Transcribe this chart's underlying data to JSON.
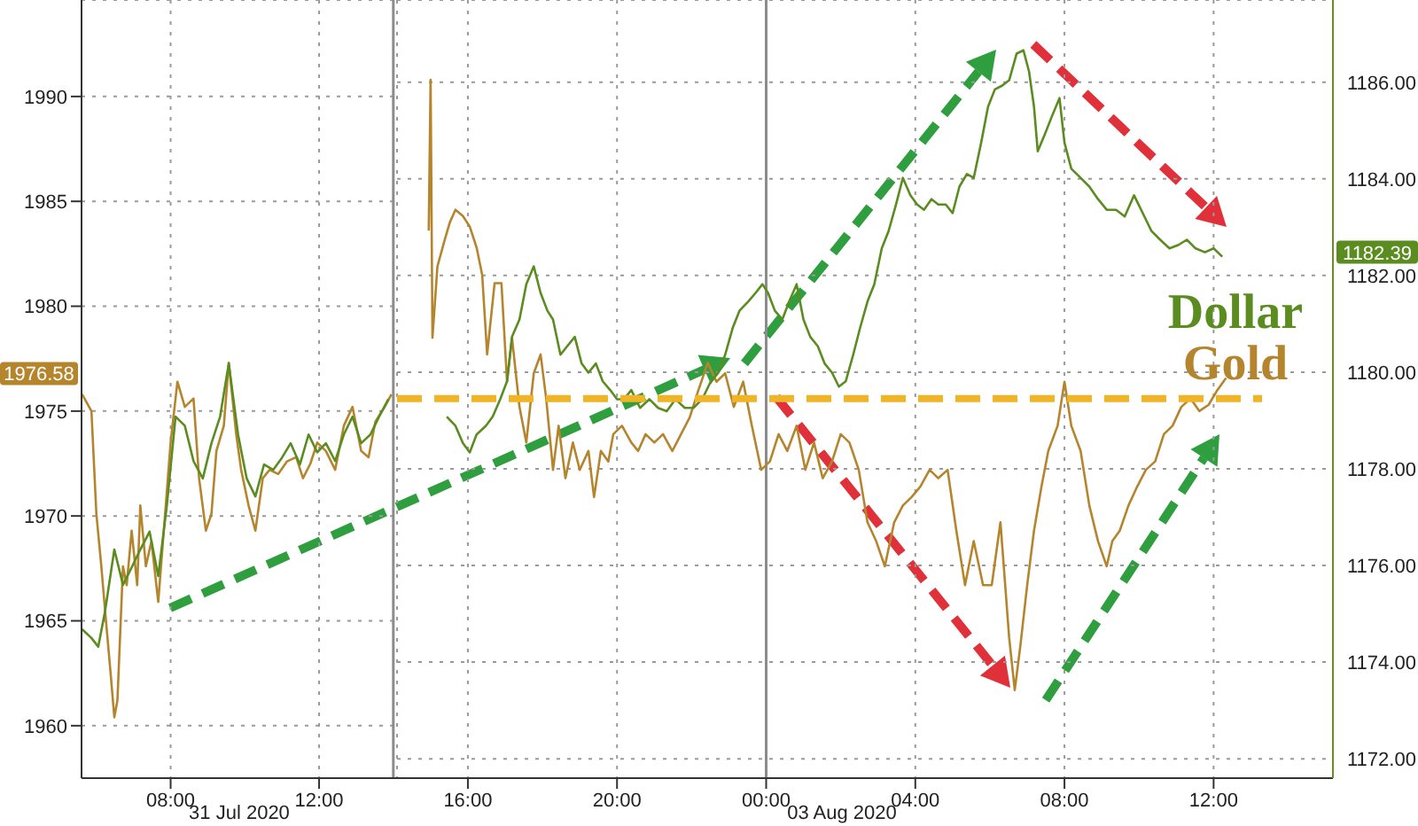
{
  "chart_data": [
    {
      "type": "line",
      "xlim": [
        "2020-07-31T05:36",
        "2020-07-31T14:06"
      ],
      "xticks": [
        {
          "value": "2020-07-31T08:00",
          "label": "08:00"
        },
        {
          "value": "2020-07-31T12:00",
          "label": "12:00"
        }
      ],
      "ylim": [
        1957.5,
        1994.6
      ],
      "yticks": [
        1960,
        1965,
        1970,
        1975,
        1980,
        1985,
        1990
      ],
      "y2lim": [
        1171.6,
        1187.7
      ],
      "grid": true,
      "annotations": [
        "31 Jul 2020"
      ],
      "ref_lines": [
        {
          "axis": "x",
          "value": "2020-07-31T14:00",
          "color": "#8c8c8c"
        }
      ],
      "series": [
        {
          "color": "#b5852e",
          "x": [
            "2020-07-31T05:37",
            "2020-07-31T05:52",
            "2020-07-31T06:00",
            "2020-07-31T06:08",
            "2020-07-31T06:14",
            "2020-07-31T06:23",
            "2020-07-31T06:29",
            "2020-07-31T06:34",
            "2020-07-31T06:43",
            "2020-07-31T06:49",
            "2020-07-31T06:57",
            "2020-07-31T07:06",
            "2020-07-31T07:11",
            "2020-07-31T07:20",
            "2020-07-31T07:29",
            "2020-07-31T07:40",
            "2020-07-31T07:49",
            "2020-07-31T08:00",
            "2020-07-31T08:11",
            "2020-07-31T08:23",
            "2020-07-31T08:37",
            "2020-07-31T08:46",
            "2020-07-31T08:57",
            "2020-07-31T09:06",
            "2020-07-31T09:14",
            "2020-07-31T09:26",
            "2020-07-31T09:34",
            "2020-07-31T09:46",
            "2020-07-31T09:54",
            "2020-07-31T10:06",
            "2020-07-31T10:17",
            "2020-07-31T10:29",
            "2020-07-31T10:40",
            "2020-07-31T10:54",
            "2020-07-31T11:08",
            "2020-07-31T11:23",
            "2020-07-31T11:34",
            "2020-07-31T11:46",
            "2020-07-31T11:57",
            "2020-07-31T12:11",
            "2020-07-31T12:26",
            "2020-07-31T12:40",
            "2020-07-31T12:54",
            "2020-07-31T13:08",
            "2020-07-31T13:20",
            "2020-07-31T13:31",
            "2020-07-31T13:46",
            "2020-07-31T13:57"
          ],
          "values": [
            1975.8,
            1975.0,
            1970.1,
            1967.6,
            1965.5,
            1962.5,
            1960.4,
            1961.2,
            1967.6,
            1966.7,
            1969.3,
            1966.7,
            1970.5,
            1967.6,
            1968.8,
            1965.9,
            1969.3,
            1973.5,
            1976.4,
            1975.2,
            1975.6,
            1971.8,
            1969.3,
            1970.1,
            1973.1,
            1974.3,
            1977.3,
            1973.9,
            1972.2,
            1970.5,
            1969.3,
            1971.8,
            1972.2,
            1972.0,
            1972.6,
            1972.8,
            1971.8,
            1972.5,
            1973.5,
            1973.1,
            1972.2,
            1974.3,
            1975.2,
            1973.1,
            1972.8,
            1974.5,
            1975.2,
            1975.8
          ]
        },
        {
          "color": "#5b8c1f",
          "axis": "y2",
          "x": [
            "2020-07-31T05:37",
            "2020-07-31T05:52",
            "2020-07-31T06:03",
            "2020-07-31T06:14",
            "2020-07-31T06:29",
            "2020-07-31T06:43",
            "2020-07-31T06:57",
            "2020-07-31T07:11",
            "2020-07-31T07:26",
            "2020-07-31T07:40",
            "2020-07-31T07:54",
            "2020-07-31T08:08",
            "2020-07-31T08:23",
            "2020-07-31T08:37",
            "2020-07-31T08:52",
            "2020-07-31T09:06",
            "2020-07-31T09:20",
            "2020-07-31T09:34",
            "2020-07-31T09:49",
            "2020-07-31T10:03",
            "2020-07-31T10:17",
            "2020-07-31T10:31",
            "2020-07-31T10:46",
            "2020-07-31T11:00",
            "2020-07-31T11:14",
            "2020-07-31T11:29",
            "2020-07-31T11:43",
            "2020-07-31T11:57",
            "2020-07-31T12:11",
            "2020-07-31T12:26",
            "2020-07-31T12:40",
            "2020-07-31T12:54",
            "2020-07-31T13:08",
            "2020-07-31T13:23",
            "2020-07-31T13:37",
            "2020-07-31T13:52"
          ],
          "values": [
            1174.68,
            1174.5,
            1174.32,
            1175.05,
            1176.33,
            1175.6,
            1175.96,
            1176.33,
            1176.7,
            1175.78,
            1177.25,
            1179.08,
            1178.89,
            1178.16,
            1177.8,
            1178.53,
            1179.08,
            1180.18,
            1178.71,
            1177.8,
            1177.43,
            1178.09,
            1177.98,
            1178.23,
            1178.53,
            1178.09,
            1178.71,
            1178.34,
            1178.53,
            1178.16,
            1178.71,
            1179.08,
            1178.53,
            1178.71,
            1179.08,
            1179.44
          ]
        }
      ]
    },
    {
      "type": "line",
      "xlim": [
        "2020-08-02T14:06",
        "2020-08-03T15:12"
      ],
      "xticks": [
        {
          "value": "2020-08-02T16:00",
          "label": "16:00"
        },
        {
          "value": "2020-08-02T20:00",
          "label": "20:00"
        },
        {
          "value": "2020-08-03T00:00",
          "label": "00:00"
        },
        {
          "value": "2020-08-03T04:00",
          "label": "04:00"
        },
        {
          "value": "2020-08-03T08:00",
          "label": "08:00"
        },
        {
          "value": "2020-08-03T12:00",
          "label": "12:00"
        }
      ],
      "ylim": [
        1957.5,
        1994.6
      ],
      "y2lim": [
        1171.6,
        1187.7
      ],
      "y2ticks": [
        {
          "value": 1172,
          "label": "1172.00"
        },
        {
          "value": 1174,
          "label": "1174.00"
        },
        {
          "value": 1176,
          "label": "1176.00"
        },
        {
          "value": 1178,
          "label": "1178.00"
        },
        {
          "value": 1180,
          "label": "1180.00"
        },
        {
          "value": 1182,
          "label": "1182.00"
        },
        {
          "value": 1184,
          "label": "1184.00"
        },
        {
          "value": 1186,
          "label": "1186.00"
        }
      ],
      "grid": true,
      "legend": "right",
      "annotations": [
        "03 Aug 2020",
        "1976.58",
        "1182.39"
      ],
      "ref_lines": [
        {
          "axis": "x",
          "value": "2020-08-03T00:00",
          "color": "#8c8c8c"
        }
      ],
      "series": [
        {
          "name": "Gold",
          "color": "#b5852e",
          "x": [
            "2020-08-02T14:57",
            "2020-08-02T15:00",
            "2020-08-02T15:03",
            "2020-08-02T15:11",
            "2020-08-02T15:23",
            "2020-08-02T15:31",
            "2020-08-02T15:40",
            "2020-08-02T15:52",
            "2020-08-02T16:03",
            "2020-08-02T16:14",
            "2020-08-02T16:23",
            "2020-08-02T16:31",
            "2020-08-02T16:43",
            "2020-08-02T16:54",
            "2020-08-02T17:03",
            "2020-08-02T17:11",
            "2020-08-02T17:23",
            "2020-08-02T17:34",
            "2020-08-02T17:46",
            "2020-08-02T17:57",
            "2020-08-02T18:06",
            "2020-08-02T18:17",
            "2020-08-02T18:26",
            "2020-08-02T18:37",
            "2020-08-02T18:49",
            "2020-08-02T19:00",
            "2020-08-02T19:14",
            "2020-08-02T19:23",
            "2020-08-02T19:34",
            "2020-08-02T19:46",
            "2020-08-02T19:54",
            "2020-08-02T20:08",
            "2020-08-02T20:23",
            "2020-08-02T20:34",
            "2020-08-02T20:46",
            "2020-08-02T21:00",
            "2020-08-02T21:14",
            "2020-08-02T21:29",
            "2020-08-02T21:43",
            "2020-08-02T21:57",
            "2020-08-02T22:11",
            "2020-08-02T22:26",
            "2020-08-02T22:40",
            "2020-08-02T22:54",
            "2020-08-02T23:08",
            "2020-08-02T23:23",
            "2020-08-02T23:37",
            "2020-08-02T23:52",
            "2020-08-03T00:06",
            "2020-08-03T00:20",
            "2020-08-03T00:34",
            "2020-08-03T00:49",
            "2020-08-03T01:03",
            "2020-08-03T01:17",
            "2020-08-03T01:31",
            "2020-08-03T01:46",
            "2020-08-03T02:00",
            "2020-08-03T02:14",
            "2020-08-03T02:29",
            "2020-08-03T02:43",
            "2020-08-03T02:57",
            "2020-08-03T03:11",
            "2020-08-03T03:26",
            "2020-08-03T03:40",
            "2020-08-03T03:54",
            "2020-08-03T04:08",
            "2020-08-03T04:23",
            "2020-08-03T04:37",
            "2020-08-03T04:52",
            "2020-08-03T05:06",
            "2020-08-03T05:20",
            "2020-08-03T05:34",
            "2020-08-03T05:49",
            "2020-08-03T06:03",
            "2020-08-03T06:17",
            "2020-08-03T06:31",
            "2020-08-03T06:40",
            "2020-08-03T06:49",
            "2020-08-03T07:00",
            "2020-08-03T07:11",
            "2020-08-03T07:23",
            "2020-08-03T07:34",
            "2020-08-03T07:49",
            "2020-08-03T08:00",
            "2020-08-03T08:11",
            "2020-08-03T08:26",
            "2020-08-03T08:40",
            "2020-08-03T08:54",
            "2020-08-03T09:08",
            "2020-08-03T09:17",
            "2020-08-03T09:29",
            "2020-08-03T09:43",
            "2020-08-03T09:57",
            "2020-08-03T10:11",
            "2020-08-03T10:26",
            "2020-08-03T10:40",
            "2020-08-03T10:54",
            "2020-08-03T11:08",
            "2020-08-03T11:23",
            "2020-08-03T11:37",
            "2020-08-03T11:52",
            "2020-08-03T12:06",
            "2020-08-03T12:20"
          ],
          "values": [
            1983.6,
            1990.8,
            1978.5,
            1981.9,
            1983.2,
            1984.0,
            1984.6,
            1984.3,
            1983.8,
            1982.8,
            1981.5,
            1977.7,
            1981.1,
            1981.1,
            1976.4,
            1978.5,
            1975.2,
            1973.5,
            1976.8,
            1977.7,
            1975.6,
            1972.2,
            1974.3,
            1971.8,
            1973.5,
            1972.2,
            1973.1,
            1970.9,
            1973.1,
            1972.6,
            1973.9,
            1974.3,
            1973.5,
            1973.1,
            1973.9,
            1973.5,
            1973.9,
            1973.1,
            1973.9,
            1974.7,
            1976.0,
            1977.3,
            1976.4,
            1976.8,
            1975.2,
            1976.4,
            1974.3,
            1972.2,
            1972.6,
            1973.9,
            1973.1,
            1974.3,
            1972.2,
            1973.5,
            1971.8,
            1972.6,
            1973.9,
            1973.5,
            1972.2,
            1969.7,
            1968.8,
            1967.6,
            1969.7,
            1970.5,
            1970.9,
            1971.4,
            1972.2,
            1971.8,
            1972.2,
            1969.3,
            1966.7,
            1968.8,
            1966.7,
            1966.7,
            1969.7,
            1964.2,
            1961.7,
            1963.8,
            1966.7,
            1969.3,
            1971.4,
            1973.1,
            1974.3,
            1976.4,
            1974.3,
            1973.1,
            1970.5,
            1968.8,
            1967.6,
            1968.8,
            1969.3,
            1970.5,
            1971.4,
            1972.2,
            1972.6,
            1973.9,
            1974.3,
            1975.2,
            1975.6,
            1975.0,
            1975.3,
            1976.0,
            1976.58
          ]
        },
        {
          "name": "Dollar",
          "color": "#5b8c1f",
          "axis": "y2",
          "x": [
            "2020-08-02T15:26",
            "2020-08-02T15:40",
            "2020-08-02T15:52",
            "2020-08-02T16:03",
            "2020-08-02T16:14",
            "2020-08-02T16:29",
            "2020-08-02T16:40",
            "2020-08-02T16:52",
            "2020-08-02T17:03",
            "2020-08-02T17:11",
            "2020-08-02T17:23",
            "2020-08-02T17:34",
            "2020-08-02T17:46",
            "2020-08-02T17:57",
            "2020-08-02T18:08",
            "2020-08-02T18:17",
            "2020-08-02T18:29",
            "2020-08-02T18:40",
            "2020-08-02T18:52",
            "2020-08-02T19:03",
            "2020-08-02T19:14",
            "2020-08-02T19:26",
            "2020-08-02T19:37",
            "2020-08-02T19:49",
            "2020-08-02T20:00",
            "2020-08-02T20:11",
            "2020-08-02T20:23",
            "2020-08-02T20:37",
            "2020-08-02T20:52",
            "2020-08-02T21:06",
            "2020-08-02T21:20",
            "2020-08-02T21:34",
            "2020-08-02T21:49",
            "2020-08-02T22:03",
            "2020-08-02T22:17",
            "2020-08-02T22:31",
            "2020-08-02T22:43",
            "2020-08-02T22:54",
            "2020-08-02T23:06",
            "2020-08-02T23:17",
            "2020-08-02T23:31",
            "2020-08-02T23:43",
            "2020-08-02T23:54",
            "2020-08-03T00:03",
            "2020-08-03T00:14",
            "2020-08-03T00:26",
            "2020-08-03T00:37",
            "2020-08-03T00:49",
            "2020-08-03T01:00",
            "2020-08-03T01:11",
            "2020-08-03T01:23",
            "2020-08-03T01:34",
            "2020-08-03T01:46",
            "2020-08-03T01:57",
            "2020-08-03T02:08",
            "2020-08-03T02:20",
            "2020-08-03T02:31",
            "2020-08-03T02:43",
            "2020-08-03T02:54",
            "2020-08-03T03:06",
            "2020-08-03T03:17",
            "2020-08-03T03:29",
            "2020-08-03T03:40",
            "2020-08-03T03:52",
            "2020-08-03T04:03",
            "2020-08-03T04:14",
            "2020-08-03T04:26",
            "2020-08-03T04:37",
            "2020-08-03T04:49",
            "2020-08-03T05:00",
            "2020-08-03T05:11",
            "2020-08-03T05:23",
            "2020-08-03T05:34",
            "2020-08-03T05:46",
            "2020-08-03T05:57",
            "2020-08-03T06:08",
            "2020-08-03T06:20",
            "2020-08-03T06:31",
            "2020-08-03T06:43",
            "2020-08-03T06:54",
            "2020-08-03T07:03",
            "2020-08-03T07:11",
            "2020-08-03T07:17",
            "2020-08-03T07:29",
            "2020-08-03T07:40",
            "2020-08-03T07:52",
            "2020-08-03T08:00",
            "2020-08-03T08:11",
            "2020-08-03T08:26",
            "2020-08-03T08:40",
            "2020-08-03T08:54",
            "2020-08-03T09:08",
            "2020-08-03T09:23",
            "2020-08-03T09:37",
            "2020-08-03T09:52",
            "2020-08-03T10:06",
            "2020-08-03T10:20",
            "2020-08-03T10:34",
            "2020-08-03T10:49",
            "2020-08-03T11:03",
            "2020-08-03T11:17",
            "2020-08-03T11:31",
            "2020-08-03T11:46",
            "2020-08-03T12:00",
            "2020-08-03T12:14"
          ],
          "values": [
            1179.08,
            1178.89,
            1178.53,
            1178.34,
            1178.71,
            1178.89,
            1179.08,
            1179.44,
            1179.81,
            1180.73,
            1181.09,
            1181.82,
            1182.19,
            1181.64,
            1181.27,
            1181.09,
            1180.36,
            1180.54,
            1180.73,
            1180.18,
            1179.99,
            1180.18,
            1179.81,
            1179.63,
            1179.44,
            1179.44,
            1179.63,
            1179.26,
            1179.44,
            1179.26,
            1179.19,
            1179.44,
            1179.26,
            1179.26,
            1179.44,
            1179.81,
            1179.99,
            1180.36,
            1180.91,
            1181.27,
            1181.46,
            1181.64,
            1181.82,
            1181.64,
            1181.27,
            1181.09,
            1181.46,
            1181.82,
            1181.09,
            1180.73,
            1180.54,
            1180.18,
            1179.99,
            1179.7,
            1179.81,
            1180.36,
            1180.91,
            1181.46,
            1181.82,
            1182.56,
            1182.92,
            1183.47,
            1184.02,
            1183.66,
            1183.47,
            1183.36,
            1183.58,
            1183.47,
            1183.47,
            1183.29,
            1183.84,
            1184.1,
            1184.02,
            1184.75,
            1185.49,
            1185.85,
            1185.93,
            1186.04,
            1186.59,
            1186.66,
            1186.22,
            1185.49,
            1184.57,
            1184.94,
            1185.3,
            1185.67,
            1184.75,
            1184.21,
            1184.02,
            1183.84,
            1183.58,
            1183.36,
            1183.36,
            1183.22,
            1183.66,
            1183.29,
            1182.92,
            1182.74,
            1182.56,
            1182.63,
            1182.74,
            1182.56,
            1182.48,
            1182.56,
            1182.39
          ]
        },
        {
          "type": "line",
          "color": "#f0b429",
          "line_style": "dashed",
          "x": [
            "2020-08-02T14:06",
            "2020-08-03T13:18"
          ],
          "values": [
            1975.6,
            1975.6
          ]
        }
      ]
    }
  ]
}
